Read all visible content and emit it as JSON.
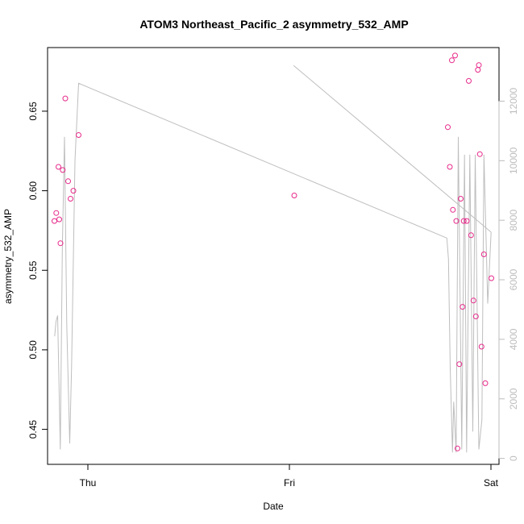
{
  "chart_data": {
    "type": "scatter",
    "title": "ATOM3 Northeast_Pacific_2 asymmetry_532_AMP",
    "xlabel": "Date",
    "ylabel": "asymmetry_532_AMP",
    "x_unit": "days",
    "xlim": [
      -0.2,
      2.04
    ],
    "ylim": [
      0.428,
      0.69
    ],
    "x_ticks": [
      {
        "value": 0,
        "label": "Thu"
      },
      {
        "value": 1,
        "label": "Fri"
      },
      {
        "value": 2,
        "label": "Sat"
      }
    ],
    "y_ticks": [
      0.45,
      0.5,
      0.55,
      0.6,
      0.65
    ],
    "y2lim": [
      -200,
      13800
    ],
    "y2_ticks": [
      0,
      2000,
      4000,
      6000,
      8000,
      10000,
      12000
    ],
    "grid": false,
    "legend": "none",
    "series": [
      {
        "type": "scatter",
        "axis": "left",
        "color": "#e7298a",
        "points": [
          {
            "x": -0.166,
            "y": 0.581
          },
          {
            "x": -0.157,
            "y": 0.586
          },
          {
            "x": -0.146,
            "y": 0.615
          },
          {
            "x": -0.142,
            "y": 0.582
          },
          {
            "x": -0.136,
            "y": 0.567
          },
          {
            "x": -0.125,
            "y": 0.613
          },
          {
            "x": -0.112,
            "y": 0.658
          },
          {
            "x": -0.098,
            "y": 0.606
          },
          {
            "x": -0.086,
            "y": 0.595
          },
          {
            "x": -0.072,
            "y": 0.6
          },
          {
            "x": -0.046,
            "y": 0.635
          },
          {
            "x": 1.024,
            "y": 0.597
          },
          {
            "x": 1.786,
            "y": 0.64
          },
          {
            "x": 1.796,
            "y": 0.615
          },
          {
            "x": 1.806,
            "y": 0.682
          },
          {
            "x": 1.811,
            "y": 0.588
          },
          {
            "x": 1.822,
            "y": 0.685
          },
          {
            "x": 1.828,
            "y": 0.581
          },
          {
            "x": 1.834,
            "y": 0.438
          },
          {
            "x": 1.843,
            "y": 0.491
          },
          {
            "x": 1.85,
            "y": 0.595
          },
          {
            "x": 1.859,
            "y": 0.527
          },
          {
            "x": 1.865,
            "y": 0.581
          },
          {
            "x": 1.88,
            "y": 0.581
          },
          {
            "x": 1.89,
            "y": 0.669
          },
          {
            "x": 1.901,
            "y": 0.572
          },
          {
            "x": 1.913,
            "y": 0.531
          },
          {
            "x": 1.925,
            "y": 0.521
          },
          {
            "x": 1.935,
            "y": 0.676
          },
          {
            "x": 1.94,
            "y": 0.679
          },
          {
            "x": 1.945,
            "y": 0.623
          },
          {
            "x": 1.953,
            "y": 0.502
          },
          {
            "x": 1.965,
            "y": 0.56
          },
          {
            "x": 1.972,
            "y": 0.479
          },
          {
            "x": 2.002,
            "y": 0.545
          }
        ]
      },
      {
        "type": "line",
        "axis": "right",
        "color": "#bebebe",
        "points": [
          {
            "x": -0.165,
            "y": 4100
          },
          {
            "x": -0.158,
            "y": 4600
          },
          {
            "x": -0.15,
            "y": 4800
          },
          {
            "x": -0.137,
            "y": 300
          },
          {
            "x": -0.127,
            "y": 7000
          },
          {
            "x": -0.116,
            "y": 10800
          },
          {
            "x": -0.105,
            "y": 4500
          },
          {
            "x": -0.09,
            "y": 500
          },
          {
            "x": -0.081,
            "y": 3100
          },
          {
            "x": -0.064,
            "y": 10000
          },
          {
            "x": -0.046,
            "y": 12600
          },
          {
            "x": 1.781,
            "y": 7400
          },
          {
            "x": 1.789,
            "y": 6700
          },
          {
            "x": 1.798,
            "y": 3000
          },
          {
            "x": 1.809,
            "y": 200
          },
          {
            "x": 1.815,
            "y": 1900
          },
          {
            "x": 1.827,
            "y": 200
          },
          {
            "x": 1.838,
            "y": 10800
          },
          {
            "x": 1.855,
            "y": 300
          },
          {
            "x": 1.869,
            "y": 10200
          },
          {
            "x": 1.879,
            "y": 200
          },
          {
            "x": 1.895,
            "y": 10200
          },
          {
            "x": 1.91,
            "y": 900
          },
          {
            "x": 1.922,
            "y": 10200
          },
          {
            "x": 1.94,
            "y": 300
          },
          {
            "x": 1.955,
            "y": 1300
          },
          {
            "x": 1.965,
            "y": 10200
          },
          {
            "x": 1.984,
            "y": 5200
          },
          {
            "x": 2.001,
            "y": 7600
          }
        ]
      },
      {
        "type": "line",
        "axis": "right",
        "color": "#bebebe",
        "points": [
          {
            "x": 1.021,
            "y": 13200
          },
          {
            "x": 2.001,
            "y": 7600
          }
        ]
      }
    ]
  }
}
